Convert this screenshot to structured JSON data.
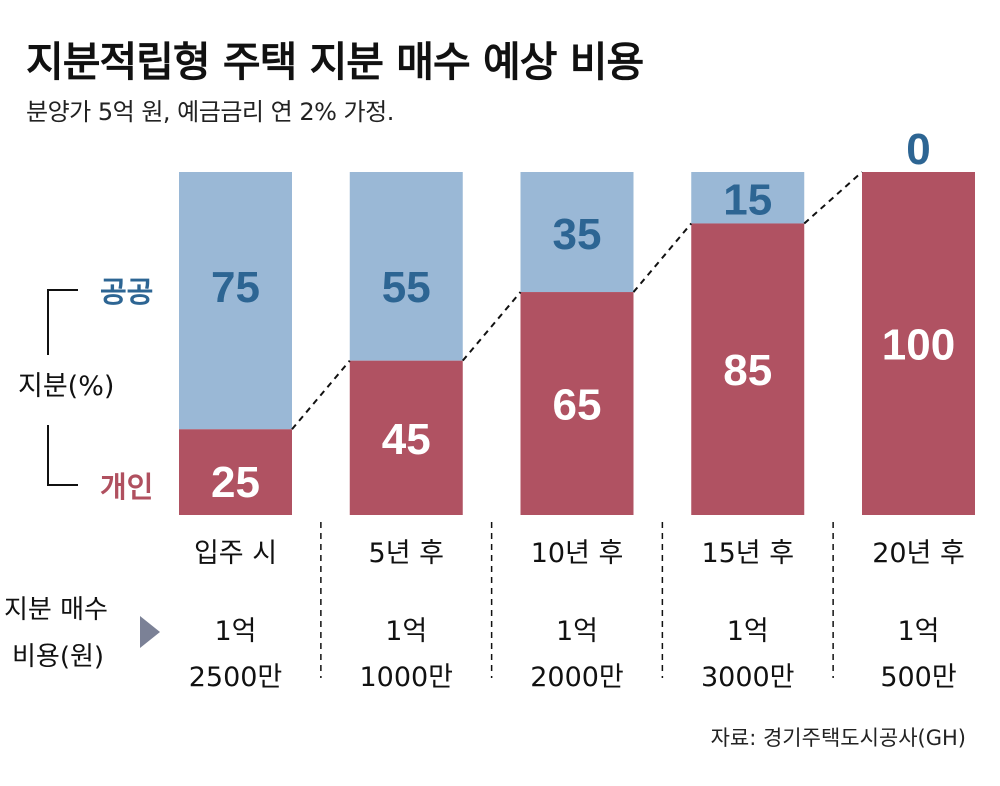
{
  "title": "지분적립형 주택 지분 매수 예상 비용",
  "subtitle": "분양가 5억 원, 예금금리 연 2% 가정.",
  "legend": {
    "public_label": "공공",
    "private_label": "개인",
    "share_label": "지분(%)"
  },
  "cost_row_label": [
    "지분 매수",
    "비용(원)"
  ],
  "source": "자료: 경기주택도시공사(GH)",
  "colors": {
    "public": "#9ab8d6",
    "private": "#b05262",
    "public_text": "#2d6593"
  },
  "chart_data": {
    "type": "bar",
    "stacked": true,
    "title": "지분적립형 주택 지분 매수 예상 비용",
    "subtitle": "분양가 5억 원, 예금금리 연 2% 가정.",
    "xlabel": "",
    "ylabel": "지분(%)",
    "ylim": [
      0,
      100
    ],
    "categories": [
      "입주 시",
      "5년 후",
      "10년 후",
      "15년 후",
      "20년 후"
    ],
    "series": [
      {
        "name": "개인",
        "values": [
          25,
          45,
          65,
          85,
          100
        ]
      },
      {
        "name": "공공",
        "values": [
          75,
          55,
          35,
          15,
          0
        ]
      }
    ],
    "purchase_cost": [
      [
        "1억",
        "2500만"
      ],
      [
        "1억",
        "1000만"
      ],
      [
        "1억",
        "2000만"
      ],
      [
        "1억",
        "3000만"
      ],
      [
        "1억",
        "500만"
      ]
    ],
    "connector_lines": "dashed lines linking top of 개인 segment between bars",
    "grid": false,
    "legend": "left"
  }
}
